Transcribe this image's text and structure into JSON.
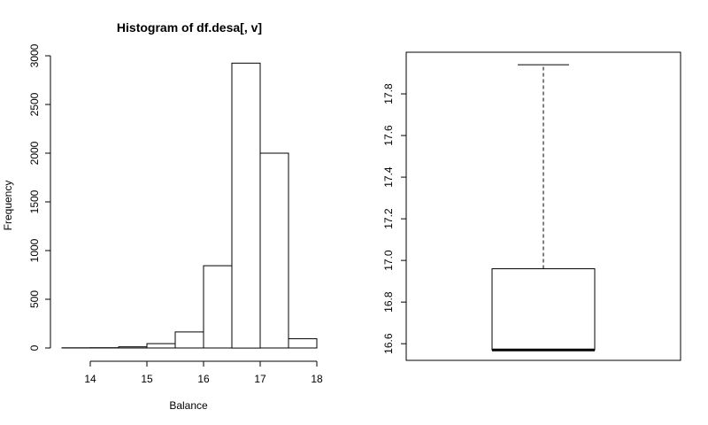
{
  "chart_data": [
    {
      "type": "bar",
      "title": "Histogram of df.desa[, v]",
      "xlabel": "Balance",
      "ylabel": "Frequency",
      "bin_edges": [
        13.5,
        14,
        14.5,
        15,
        15.5,
        16,
        16.5,
        17,
        17.5,
        18
      ],
      "values": [
        2,
        3,
        12,
        45,
        165,
        845,
        2925,
        2000,
        95
      ],
      "xlim": [
        13.5,
        18
      ],
      "ylim": [
        0,
        3000
      ],
      "x_ticks": [
        "14",
        "15",
        "16",
        "17",
        "18"
      ],
      "y_ticks": [
        "0",
        "500",
        "1000",
        "1500",
        "2000",
        "2500",
        "3000"
      ],
      "grid": false
    },
    {
      "type": "box",
      "title": "",
      "ylim": [
        16.52,
        18.0
      ],
      "y_ticks": [
        "16.6",
        "16.8",
        "17.0",
        "17.2",
        "17.4",
        "17.6",
        "17.8"
      ],
      "whisker_low": 16.57,
      "q1": 16.57,
      "median": 16.57,
      "q3": 16.96,
      "whisker_high": 17.94,
      "grid": false
    }
  ]
}
